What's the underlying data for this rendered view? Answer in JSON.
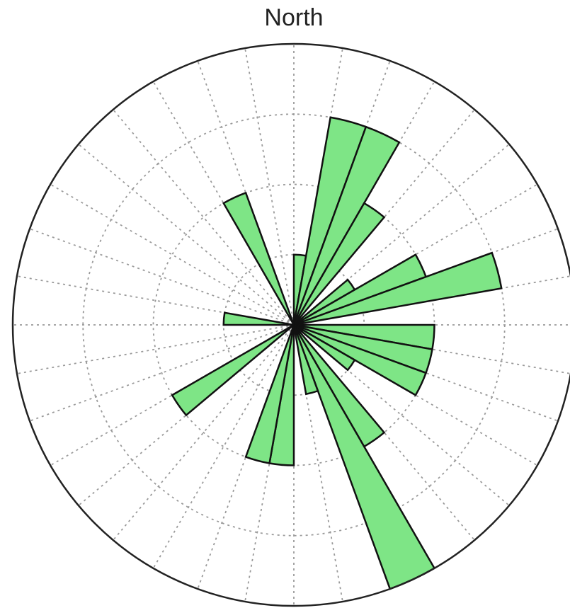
{
  "chart_data": {
    "type": "rose",
    "title": "North",
    "direction_labels": [
      "North"
    ],
    "bin_width_deg": 10,
    "r_max": 4,
    "r_rings": [
      1,
      2,
      3
    ],
    "spokes_every_deg": 10,
    "grid": true,
    "fill_color": "#7ee586",
    "edge_color": "#111111",
    "bins": [
      {
        "direction_deg": 5,
        "value": 1.0
      },
      {
        "direction_deg": 15,
        "value": 3.0
      },
      {
        "direction_deg": 25,
        "value": 3.0
      },
      {
        "direction_deg": 35,
        "value": 2.0
      },
      {
        "direction_deg": 55,
        "value": 1.0
      },
      {
        "direction_deg": 65,
        "value": 2.0
      },
      {
        "direction_deg": 75,
        "value": 3.0
      },
      {
        "direction_deg": 95,
        "value": 2.0
      },
      {
        "direction_deg": 105,
        "value": 2.0
      },
      {
        "direction_deg": 115,
        "value": 2.0
      },
      {
        "direction_deg": 125,
        "value": 1.0
      },
      {
        "direction_deg": 145,
        "value": 2.0
      },
      {
        "direction_deg": 155,
        "value": 4.0
      },
      {
        "direction_deg": 165,
        "value": 1.0
      },
      {
        "direction_deg": 185,
        "value": 2.0
      },
      {
        "direction_deg": 195,
        "value": 2.0
      },
      {
        "direction_deg": 235,
        "value": 2.0
      },
      {
        "direction_deg": 275,
        "value": 1.0
      },
      {
        "direction_deg": 335,
        "value": 2.0
      }
    ]
  }
}
